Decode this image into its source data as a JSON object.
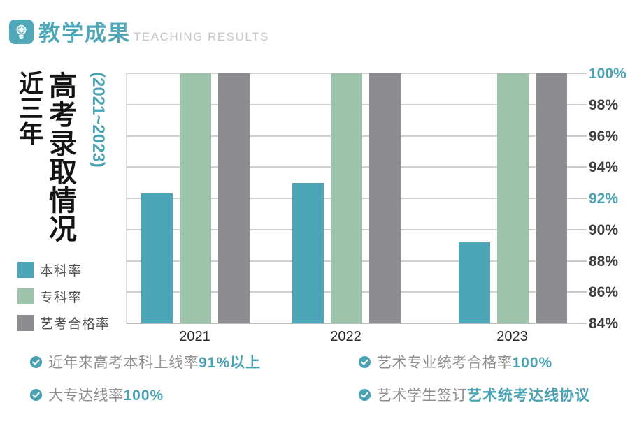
{
  "header": {
    "icon": "lightbulb-icon",
    "title_zh": "教学成果",
    "title_en": "TEACHING RESULTS"
  },
  "side_titles": {
    "period": "近三年",
    "main": "高考录取情况",
    "years_range": "(2021~2023)"
  },
  "legend": [
    {
      "label": "本科率",
      "color": "#4da6b8"
    },
    {
      "label": "专科率",
      "color": "#9ec3ab"
    },
    {
      "label": "艺考合格率",
      "color": "#8d8d91"
    }
  ],
  "chart_data": {
    "type": "bar",
    "categories": [
      "2021",
      "2022",
      "2023"
    ],
    "series": [
      {
        "name": "本科率",
        "color": "#4da6b8",
        "values": [
          92.3,
          93.0,
          89.2
        ]
      },
      {
        "name": "专科率",
        "color": "#9ec3ab",
        "values": [
          100,
          100,
          100
        ]
      },
      {
        "name": "艺考合格率",
        "color": "#8d8d91",
        "values": [
          100,
          100,
          100
        ]
      }
    ],
    "ylim": [
      84,
      100
    ],
    "ytick_step": 2,
    "ytick_labels": [
      "100%",
      "98%",
      "96%",
      "94%",
      "92%",
      "90%",
      "88%",
      "86%",
      "84%"
    ],
    "highlighted_tick_labels": [
      "100%",
      "92%"
    ],
    "grid": "horizontal",
    "legend_position": "left"
  },
  "footnotes": {
    "left": [
      {
        "prefix": "近年来高考本科上线率",
        "highlight": "91%以上"
      },
      {
        "prefix": "大专达线率",
        "highlight": "100%"
      }
    ],
    "right": [
      {
        "prefix": "艺术专业统考合格率",
        "highlight": "100%"
      },
      {
        "prefix": "艺术学生签订",
        "highlight": "艺术统考达线协议"
      }
    ]
  },
  "colors": {
    "accent_teal": "#4fa7b8",
    "highlight_teal": "#4aa2b5",
    "axis_text": "#3f3f3f",
    "grid": "#d0d0d0",
    "muted_text": "#8f8f8f",
    "subtitle_gray": "#c6c6c6"
  }
}
